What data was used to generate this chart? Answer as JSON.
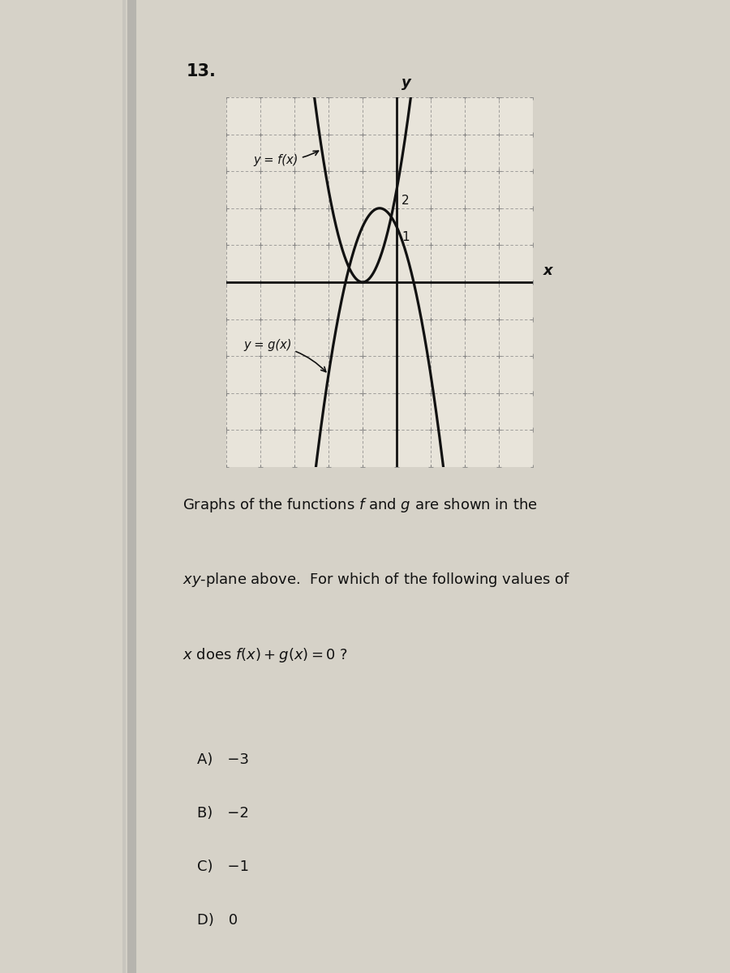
{
  "title_number": "13.",
  "background_color": "#d6d2c8",
  "paper_color": "#e8e4da",
  "grid_color": "#777777",
  "axis_color": "#111111",
  "curve_color": "#111111",
  "xlim": [
    -5,
    4
  ],
  "ylim": [
    -5,
    5
  ],
  "label_f": "y = f(x)",
  "label_g": "y = g(x)",
  "tick_2": "2",
  "tick_1": "1",
  "question_line1": "Graphs of the functions ",
  "question_line2": "xy-plane above.  For which of the following values of",
  "question_line3": "x does f(x) + g(x) = 0 ?",
  "choices": [
    "A) −3",
    "B) −2",
    "C) −1",
    "D) 0"
  ],
  "f_scale": 2.5,
  "g_scale": -2.5
}
